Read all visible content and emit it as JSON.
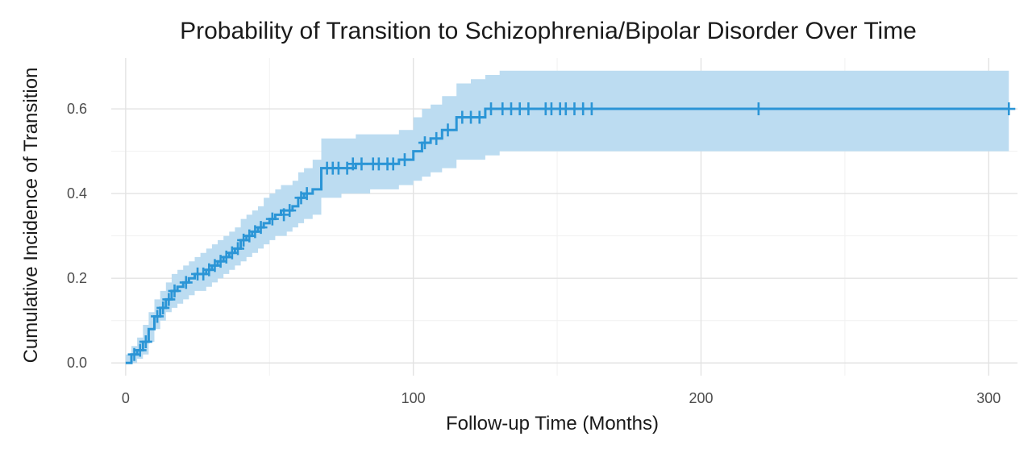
{
  "chart_data": {
    "type": "line",
    "title": "Probability of Transition to Schizophrenia/Bipolar Disorder Over Time",
    "xlabel": "Follow-up Time (Months)",
    "ylabel": "Cumulative Incidence of Transition",
    "xlim": [
      -5,
      310
    ],
    "ylim": [
      -0.03,
      0.72
    ],
    "x_ticks": [
      0,
      100,
      200,
      300
    ],
    "x_tick_labels": [
      "0",
      "100",
      "200",
      "300"
    ],
    "y_ticks": [
      0.0,
      0.2,
      0.4,
      0.6
    ],
    "y_tick_labels": [
      "0.0",
      "0.2",
      "0.4",
      "0.6"
    ],
    "grid": true,
    "legend": false,
    "colors": {
      "line": "#2b95d6",
      "band": "#bcdcf1"
    },
    "series": [
      {
        "step": true,
        "x": [
          0,
          2,
          4,
          6,
          8,
          10,
          12,
          14,
          16,
          18,
          20,
          22,
          24,
          26,
          28,
          30,
          32,
          34,
          36,
          38,
          40,
          42,
          44,
          46,
          48,
          50,
          52,
          54,
          56,
          58,
          60,
          62,
          65,
          68,
          70,
          75,
          80,
          85,
          90,
          95,
          100,
          103,
          106,
          110,
          115,
          120,
          125,
          130,
          140,
          150,
          160,
          220,
          307
        ],
        "y": [
          0.0,
          0.02,
          0.03,
          0.05,
          0.08,
          0.11,
          0.13,
          0.15,
          0.17,
          0.18,
          0.19,
          0.2,
          0.21,
          0.21,
          0.22,
          0.23,
          0.24,
          0.25,
          0.26,
          0.27,
          0.29,
          0.3,
          0.31,
          0.32,
          0.33,
          0.34,
          0.35,
          0.36,
          0.36,
          0.37,
          0.39,
          0.4,
          0.41,
          0.46,
          0.46,
          0.46,
          0.47,
          0.47,
          0.47,
          0.48,
          0.5,
          0.52,
          0.53,
          0.55,
          0.58,
          0.58,
          0.6,
          0.6,
          0.6,
          0.6,
          0.6,
          0.6,
          0.6
        ],
        "lower": [
          0.0,
          0.0,
          0.01,
          0.02,
          0.05,
          0.08,
          0.1,
          0.12,
          0.13,
          0.14,
          0.15,
          0.16,
          0.17,
          0.17,
          0.18,
          0.19,
          0.2,
          0.21,
          0.22,
          0.23,
          0.24,
          0.25,
          0.26,
          0.27,
          0.28,
          0.29,
          0.3,
          0.3,
          0.31,
          0.32,
          0.33,
          0.34,
          0.35,
          0.39,
          0.39,
          0.4,
          0.4,
          0.41,
          0.41,
          0.42,
          0.43,
          0.44,
          0.45,
          0.46,
          0.48,
          0.48,
          0.49,
          0.5,
          0.5,
          0.5,
          0.5,
          0.5,
          0.5
        ],
        "upper": [
          0.02,
          0.04,
          0.06,
          0.09,
          0.12,
          0.15,
          0.17,
          0.19,
          0.21,
          0.22,
          0.23,
          0.24,
          0.25,
          0.26,
          0.27,
          0.28,
          0.29,
          0.3,
          0.31,
          0.32,
          0.34,
          0.35,
          0.36,
          0.37,
          0.39,
          0.4,
          0.41,
          0.42,
          0.42,
          0.43,
          0.45,
          0.46,
          0.48,
          0.53,
          0.53,
          0.53,
          0.54,
          0.54,
          0.54,
          0.55,
          0.58,
          0.6,
          0.61,
          0.63,
          0.66,
          0.67,
          0.68,
          0.69,
          0.69,
          0.69,
          0.69,
          0.69,
          0.69
        ]
      }
    ],
    "censor_marks": {
      "x": [
        3,
        5,
        7,
        11,
        13,
        15,
        17,
        21,
        25,
        27,
        29,
        31,
        33,
        35,
        37,
        39,
        41,
        43,
        45,
        47,
        51,
        55,
        57,
        61,
        63,
        70,
        72,
        74,
        77,
        79,
        82,
        86,
        88,
        91,
        93,
        97,
        104,
        108,
        112,
        117,
        120,
        123,
        127,
        131,
        134,
        137,
        140,
        146,
        148,
        151,
        153,
        156,
        159,
        162,
        220,
        307
      ],
      "y": [
        0.02,
        0.03,
        0.05,
        0.11,
        0.13,
        0.15,
        0.17,
        0.19,
        0.21,
        0.21,
        0.22,
        0.23,
        0.24,
        0.25,
        0.26,
        0.27,
        0.29,
        0.3,
        0.31,
        0.32,
        0.34,
        0.35,
        0.36,
        0.39,
        0.4,
        0.46,
        0.46,
        0.46,
        0.46,
        0.47,
        0.47,
        0.47,
        0.47,
        0.47,
        0.47,
        0.48,
        0.52,
        0.53,
        0.55,
        0.58,
        0.58,
        0.58,
        0.6,
        0.6,
        0.6,
        0.6,
        0.6,
        0.6,
        0.6,
        0.6,
        0.6,
        0.6,
        0.6,
        0.6,
        0.6,
        0.6
      ]
    }
  }
}
